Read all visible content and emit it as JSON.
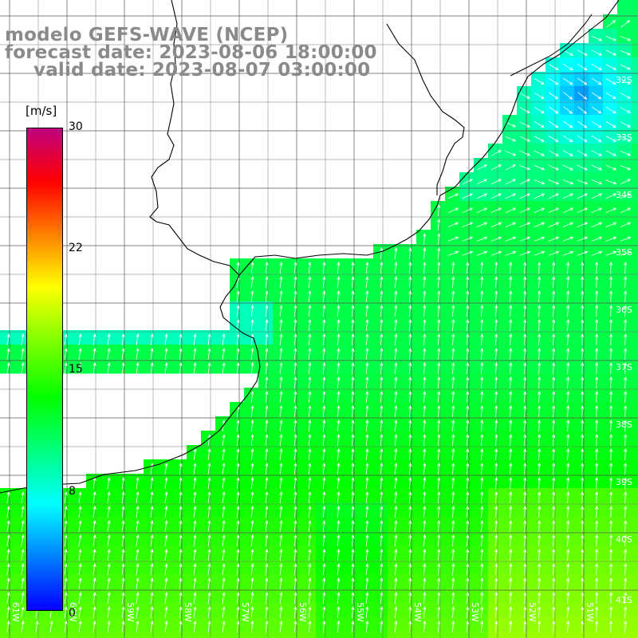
{
  "title": {
    "line1": "modelo GEFS-WAVE (NCEP)",
    "line2": "forecast date: 2023-08-06 18:00:00",
    "line3": "valid date: 2023-08-07 03:00:00"
  },
  "colorbar": {
    "unit": "[m/s]",
    "ticks": [
      "30",
      "22",
      "15",
      "8",
      "0"
    ],
    "tick_values": [
      30,
      22,
      15,
      8,
      0
    ],
    "range": [
      0,
      30
    ],
    "colors": [
      "#0000ff",
      "#0080ff",
      "#00ffff",
      "#00ff80",
      "#00ff00",
      "#80ff00",
      "#ffff00",
      "#ff8000",
      "#ff0000",
      "#c0007f"
    ]
  },
  "map": {
    "lon_labels": [
      "61W",
      "60W",
      "59W",
      "58W",
      "57W",
      "56W",
      "55W",
      "54W",
      "53W",
      "52W",
      "51W"
    ],
    "lat_labels": [
      "32S",
      "33S",
      "34S",
      "35S",
      "36S",
      "37S",
      "38S",
      "39S",
      "40S",
      "41S"
    ],
    "lon_range": [
      -61.5,
      -50.5
    ],
    "lat_range": [
      -41.3,
      -30.5
    ],
    "field": "wind speed (m/s) with wind direction arrows",
    "wind_direction": "from south-southwest (northward arrows), veering to eastward near coast in north-east"
  }
}
